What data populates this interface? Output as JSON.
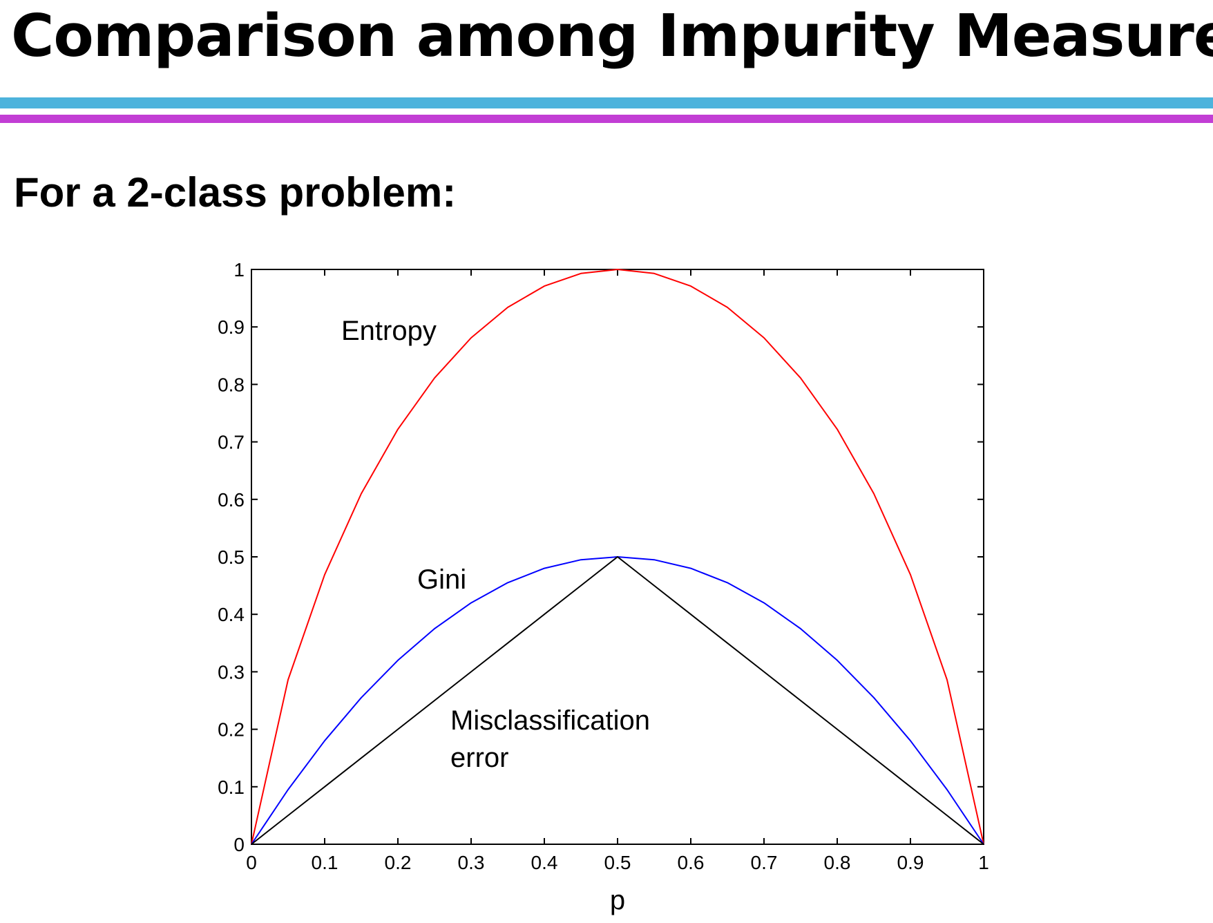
{
  "slide": {
    "title": "Comparison among Impurity Measures",
    "subtitle": "For a 2-class problem:",
    "rule_colors": [
      "#4db3dc",
      "#c23ed4"
    ]
  },
  "chart_data": {
    "type": "line",
    "xlabel": "p",
    "ylabel": "",
    "xlim": [
      0,
      1
    ],
    "ylim": [
      0,
      1
    ],
    "xticks": [
      "0",
      "0.1",
      "0.2",
      "0.3",
      "0.4",
      "0.5",
      "0.6",
      "0.7",
      "0.8",
      "0.9",
      "1"
    ],
    "yticks": [
      "0",
      "0.1",
      "0.2",
      "0.3",
      "0.4",
      "0.5",
      "0.6",
      "0.7",
      "0.8",
      "0.9",
      "1"
    ],
    "grid": false,
    "x": [
      0,
      0.05,
      0.1,
      0.15,
      0.2,
      0.25,
      0.3,
      0.35,
      0.4,
      0.45,
      0.5,
      0.55,
      0.6,
      0.65,
      0.7,
      0.75,
      0.8,
      0.85,
      0.9,
      0.95,
      1
    ],
    "series": [
      {
        "name": "Entropy",
        "color": "#ff0000",
        "values": [
          0,
          0.286,
          0.469,
          0.61,
          0.722,
          0.811,
          0.881,
          0.934,
          0.971,
          0.993,
          1,
          0.993,
          0.971,
          0.934,
          0.881,
          0.811,
          0.722,
          0.61,
          0.469,
          0.286,
          0
        ]
      },
      {
        "name": "Gini",
        "color": "#0000ff",
        "values": [
          0,
          0.095,
          0.18,
          0.255,
          0.32,
          0.375,
          0.42,
          0.455,
          0.48,
          0.495,
          0.5,
          0.495,
          0.48,
          0.455,
          0.42,
          0.375,
          0.32,
          0.255,
          0.18,
          0.095,
          0
        ]
      },
      {
        "name": "Misclassification error",
        "color": "#000000",
        "values": [
          0,
          0.05,
          0.1,
          0.15,
          0.2,
          0.25,
          0.3,
          0.35,
          0.4,
          0.45,
          0.5,
          0.45,
          0.4,
          0.35,
          0.3,
          0.25,
          0.2,
          0.15,
          0.1,
          0.05,
          0
        ]
      }
    ],
    "annotations": {
      "entropy": "Entropy",
      "gini": "Gini",
      "misclass_line1": "Misclassification",
      "misclass_line2": "error"
    }
  }
}
